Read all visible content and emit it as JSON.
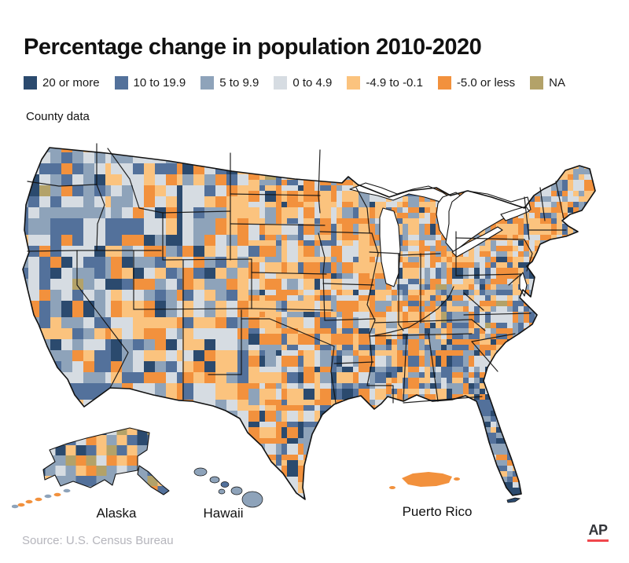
{
  "title": "Percentage change in population 2010-2020",
  "subtitle": "County data",
  "legend": {
    "items": [
      {
        "label": "20 or more",
        "color": "#2b4a6e",
        "key": "navy"
      },
      {
        "label": "10 to 19.9",
        "color": "#53719b",
        "key": "blue"
      },
      {
        "label": "5 to 9.9",
        "color": "#8ea3ba",
        "key": "grayblue"
      },
      {
        "label": "0 to 4.9",
        "color": "#d6dce2",
        "key": "lightgray"
      },
      {
        "label": "-4.9 to -0.1",
        "color": "#fbc37e",
        "key": "lightorange"
      },
      {
        "label": "-5.0 or less",
        "color": "#f2913d",
        "key": "orange"
      },
      {
        "label": "NA",
        "color": "#b3a269",
        "key": "khaki"
      }
    ]
  },
  "map_labels": {
    "alaska": "Alaska",
    "hawaii": "Hawaii",
    "puerto_rico": "Puerto Rico"
  },
  "source": "Source: U.S. Census Bureau",
  "logo": "AP",
  "colors": {
    "text": "#111111",
    "source_text": "#b5b5bc",
    "ap_red": "#f0474c",
    "state_border": "#111111",
    "water": "#ffffff"
  },
  "chart_data": {
    "type": "heatmap",
    "subtype": "choropleth_map",
    "geography": "United States counties (incl. Alaska, Hawaii, Puerto Rico)",
    "title": "Percentage change in population 2010-2020",
    "note": "County data",
    "classes": [
      {
        "range": "20 or more",
        "color": "#2b4a6e"
      },
      {
        "range": "10 to 19.9",
        "color": "#53719b"
      },
      {
        "range": "5 to 9.9",
        "color": "#8ea3ba"
      },
      {
        "range": "0 to 4.9",
        "color": "#d6dce2"
      },
      {
        "range": "-4.9 to -0.1",
        "color": "#fbc37e"
      },
      {
        "range": "-5.0 or less",
        "color": "#f2913d"
      },
      {
        "range": "NA",
        "color": "#b3a269"
      }
    ],
    "legend_position": "top",
    "source": "U.S. Census Bureau"
  }
}
